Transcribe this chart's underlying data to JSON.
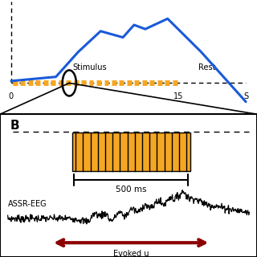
{
  "fig_width": 3.2,
  "fig_height": 3.2,
  "dpi": 100,
  "bg_color": "#ffffff",
  "panel_A": {
    "blue_color": "#1a5ad9",
    "orange_color": "#F5A623",
    "line_width": 2.2,
    "xlim": [
      -1,
      22
    ],
    "ylim": [
      -1.5,
      4.0
    ],
    "bold_x": [
      0,
      4,
      6,
      8,
      10,
      11,
      12,
      14,
      17,
      21
    ],
    "bold_y": [
      0.1,
      0.3,
      1.5,
      2.5,
      2.2,
      2.8,
      2.6,
      3.1,
      1.5,
      -0.9
    ]
  },
  "panel_B": {
    "orange_color": "#F5A623",
    "red_arrow_color": "#8B0000",
    "n_stripes": 16
  }
}
